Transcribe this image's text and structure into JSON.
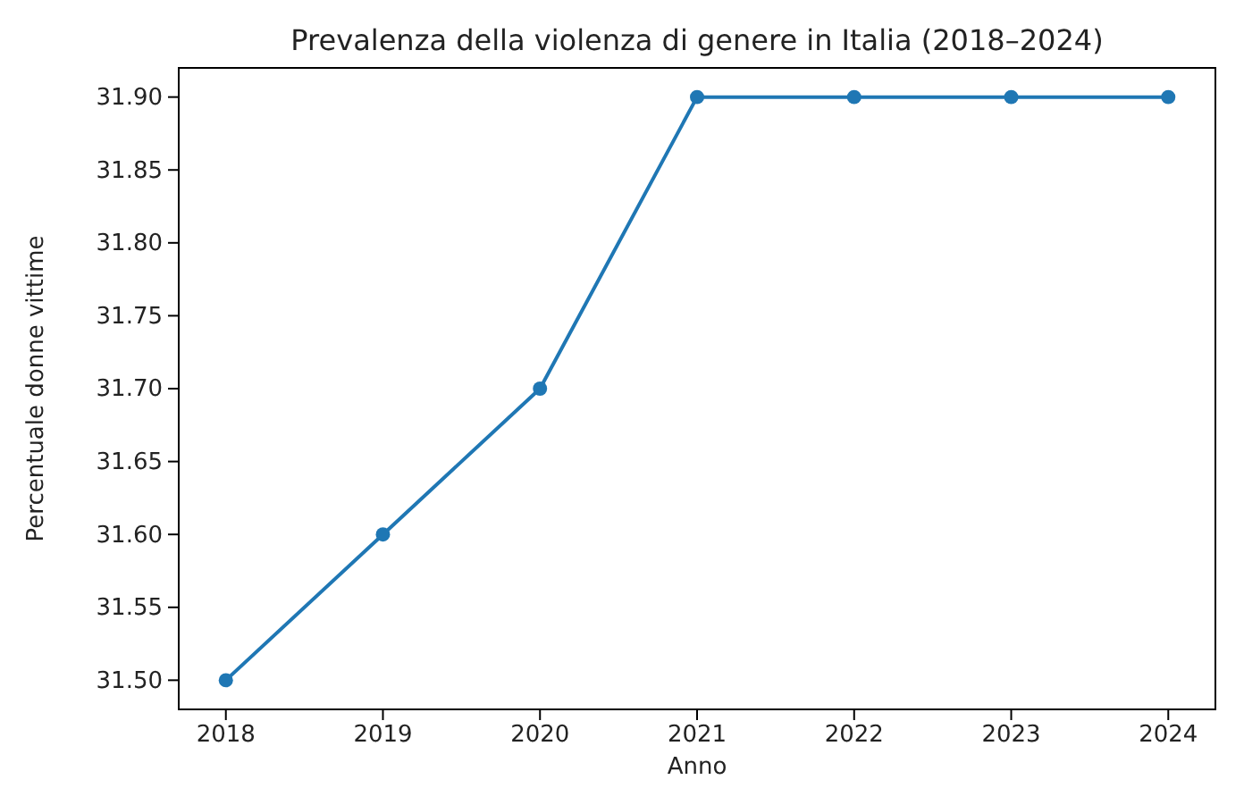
{
  "chart_data": {
    "type": "line",
    "title": "Prevalenza della violenza di genere in Italia (2018–2024)",
    "xlabel": "Anno",
    "ylabel": "Percentuale donne vittime",
    "x": [
      2018,
      2019,
      2020,
      2021,
      2022,
      2023,
      2024
    ],
    "series": [
      {
        "color": "#1f77b4",
        "values": [
          31.5,
          31.6,
          31.7,
          31.9,
          31.9,
          31.9,
          31.9
        ]
      }
    ],
    "xlim": [
      2017.7,
      2024.3
    ],
    "xticks": [
      2018,
      2019,
      2020,
      2021,
      2022,
      2023,
      2024
    ],
    "ylim": [
      31.48,
      31.92
    ],
    "yticks": [
      {
        "value": 31.5,
        "label": "31.50"
      },
      31.55,
      {
        "value": 31.6,
        "label": "31.60"
      },
      31.65,
      {
        "value": 31.7,
        "label": "31.70"
      },
      31.75,
      {
        "value": 31.8,
        "label": "31.80"
      },
      31.85,
      {
        "value": 31.9,
        "label": "31.90"
      }
    ],
    "marker": "circle",
    "line_style": "solid",
    "grid": false
  }
}
